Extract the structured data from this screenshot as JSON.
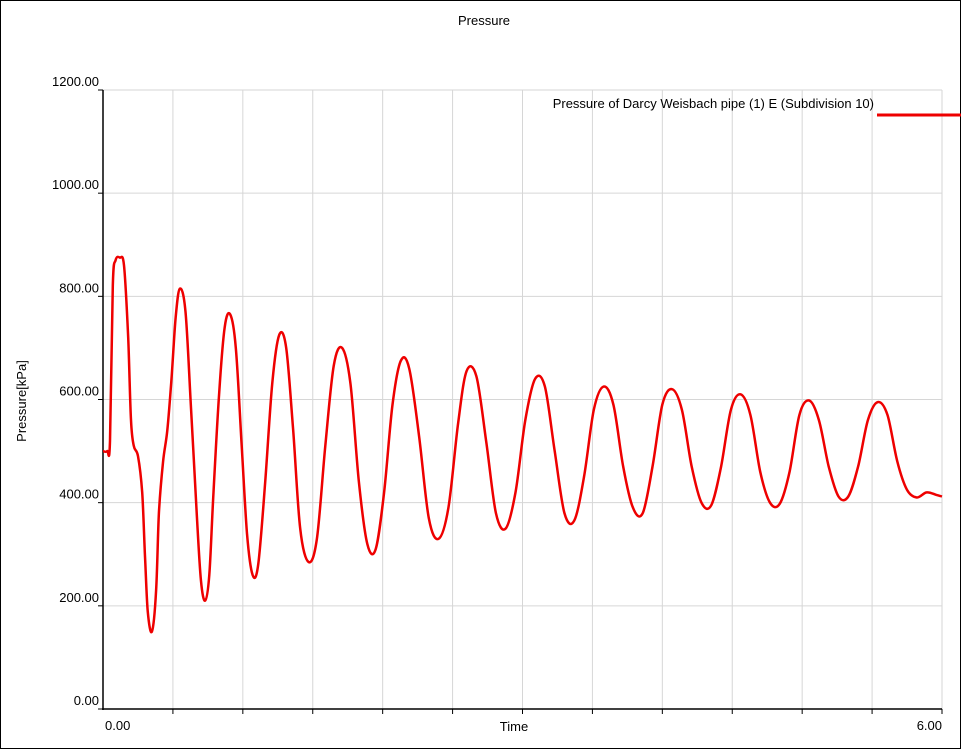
{
  "chart_data": {
    "type": "line",
    "title": "Pressure",
    "xlabel": "Time",
    "ylabel": "Pressure[kPa]",
    "xlim": [
      0,
      6
    ],
    "ylim": [
      0,
      1200
    ],
    "x_ticklabels": [
      "0.00",
      "6.00"
    ],
    "y_ticks": [
      0,
      200,
      400,
      600,
      800,
      1000,
      1200
    ],
    "y_ticklabels": [
      "0.00",
      "200.00",
      "400.00",
      "600.00",
      "800.00",
      "1000.00",
      "1200.00"
    ],
    "grid": true,
    "legend_position": "top-right",
    "series": [
      {
        "name": "Pressure of Darcy Weisbach pipe (1) E (Subdivision 10)",
        "color": "#ee0000",
        "x": [
          0.0,
          0.03,
          0.05,
          0.07,
          0.09,
          0.12,
          0.15,
          0.18,
          0.2,
          0.22,
          0.25,
          0.28,
          0.3,
          0.32,
          0.35,
          0.38,
          0.4,
          0.43,
          0.46,
          0.49,
          0.52,
          0.55,
          0.59,
          0.63,
          0.67,
          0.7,
          0.73,
          0.76,
          0.79,
          0.83,
          0.87,
          0.91,
          0.95,
          0.99,
          1.03,
          1.07,
          1.11,
          1.16,
          1.21,
          1.26,
          1.31,
          1.36,
          1.41,
          1.47,
          1.53,
          1.59,
          1.65,
          1.71,
          1.77,
          1.83,
          1.89,
          1.95,
          2.01,
          2.07,
          2.13,
          2.19,
          2.26,
          2.33,
          2.4,
          2.47,
          2.54,
          2.6,
          2.67,
          2.74,
          2.81,
          2.88,
          2.95,
          3.02,
          3.09,
          3.16,
          3.23,
          3.3,
          3.37,
          3.44,
          3.51,
          3.58,
          3.65,
          3.72,
          3.79,
          3.86,
          3.93,
          4.0,
          4.07,
          4.14,
          4.21,
          4.28,
          4.35,
          4.42,
          4.49,
          4.56,
          4.63,
          4.7,
          4.77,
          4.84,
          4.91,
          4.98,
          5.05,
          5.12,
          5.19,
          5.26,
          5.33,
          5.4,
          5.47,
          5.54,
          5.61,
          5.68,
          5.75,
          5.82,
          5.89,
          5.96,
          6.0
        ],
        "y": [
          500,
          500,
          520,
          820,
          870,
          875,
          860,
          720,
          560,
          510,
          490,
          420,
          300,
          190,
          150,
          230,
          380,
          480,
          540,
          640,
          760,
          815,
          770,
          580,
          380,
          250,
          210,
          260,
          420,
          610,
          740,
          765,
          700,
          520,
          340,
          260,
          280,
          440,
          630,
          725,
          700,
          540,
          350,
          285,
          330,
          510,
          665,
          700,
          630,
          440,
          320,
          310,
          420,
          590,
          675,
          660,
          530,
          370,
          330,
          390,
          555,
          655,
          645,
          520,
          380,
          350,
          420,
          560,
          640,
          625,
          500,
          380,
          365,
          450,
          580,
          625,
          590,
          470,
          390,
          380,
          470,
          590,
          620,
          580,
          470,
          400,
          395,
          470,
          580,
          610,
          570,
          460,
          400,
          398,
          460,
          570,
          598,
          560,
          470,
          412,
          412,
          470,
          560,
          595,
          570,
          480,
          425,
          410,
          420,
          415,
          412
        ]
      }
    ]
  }
}
